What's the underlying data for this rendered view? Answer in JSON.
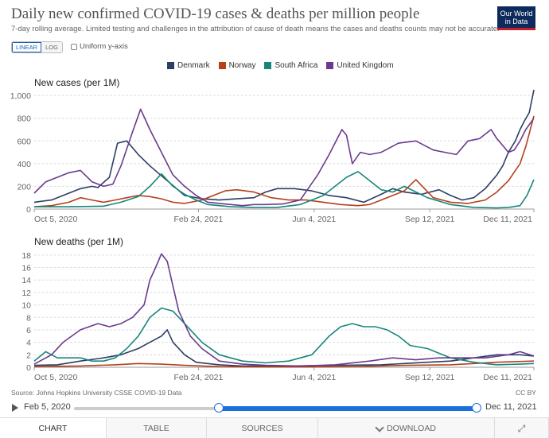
{
  "header": {
    "title": "Daily new confirmed COVID-19 cases & deaths per million people",
    "subtitle": "7-day rolling average. Limited testing and challenges in the attribution of cause of death means the cases and deaths counts may not be accurate.",
    "logo_line1": "Our World",
    "logo_line2": "in Data"
  },
  "controls": {
    "linear_label": "LINEAR",
    "log_label": "LOG",
    "uniform_label": "Uniform y-axis"
  },
  "legend": [
    {
      "name": "Denmark",
      "color": "#2d3e63"
    },
    {
      "name": "Norway",
      "color": "#b5401a"
    },
    {
      "name": "South Africa",
      "color": "#17877b"
    },
    {
      "name": "United Kingdom",
      "color": "#6b3a8d"
    }
  ],
  "chart_data": [
    {
      "type": "line",
      "title": "New cases (per 1M)",
      "x_ticks": [
        "Oct 5, 2020",
        "Feb 24, 2021",
        "Jun 4, 2021",
        "Sep 12, 2021",
        "Dec 11, 2021"
      ],
      "ylim": [
        0,
        1050
      ],
      "y_ticks": [
        0,
        200,
        400,
        600,
        800,
        1000
      ],
      "y_tick_labels": [
        "0",
        "200",
        "400",
        "600",
        "800",
        "1,000"
      ],
      "x_range_days": [
        0,
        432
      ],
      "series": [
        {
          "name": "Denmark",
          "color": "#2d3e63",
          "x": [
            0,
            15,
            25,
            40,
            50,
            55,
            65,
            72,
            80,
            90,
            100,
            115,
            130,
            145,
            160,
            175,
            190,
            200,
            210,
            225,
            240,
            255,
            270,
            285,
            300,
            310,
            320,
            335,
            350,
            360,
            370,
            380,
            390,
            400,
            405,
            410,
            416,
            420,
            424,
            428,
            432
          ],
          "values": [
            60,
            80,
            120,
            180,
            200,
            190,
            280,
            580,
            600,
            480,
            380,
            250,
            120,
            90,
            80,
            90,
            100,
            150,
            180,
            180,
            160,
            120,
            100,
            60,
            130,
            180,
            150,
            130,
            170,
            120,
            80,
            100,
            180,
            300,
            380,
            500,
            600,
            700,
            780,
            850,
            1050
          ]
        },
        {
          "name": "Norway",
          "color": "#b5401a",
          "x": [
            0,
            15,
            30,
            40,
            50,
            60,
            70,
            80,
            90,
            100,
            110,
            120,
            130,
            145,
            155,
            165,
            175,
            190,
            205,
            220,
            235,
            250,
            265,
            280,
            290,
            300,
            310,
            320,
            330,
            345,
            360,
            375,
            390,
            400,
            410,
            420,
            425,
            432
          ],
          "values": [
            20,
            30,
            60,
            100,
            80,
            60,
            80,
            100,
            120,
            110,
            90,
            60,
            50,
            80,
            120,
            160,
            170,
            150,
            100,
            80,
            80,
            60,
            40,
            30,
            40,
            80,
            120,
            160,
            260,
            100,
            60,
            50,
            80,
            150,
            250,
            400,
            550,
            820
          ]
        },
        {
          "name": "South Africa",
          "color": "#17877b",
          "x": [
            0,
            30,
            60,
            75,
            90,
            100,
            110,
            120,
            130,
            140,
            150,
            170,
            190,
            210,
            230,
            250,
            270,
            280,
            290,
            300,
            310,
            320,
            340,
            360,
            380,
            400,
            410,
            420,
            426,
            432
          ],
          "values": [
            20,
            20,
            25,
            60,
            110,
            200,
            310,
            200,
            130,
            80,
            40,
            20,
            15,
            15,
            40,
            120,
            280,
            330,
            250,
            170,
            150,
            200,
            100,
            40,
            15,
            10,
            15,
            30,
            120,
            260
          ]
        },
        {
          "name": "United Kingdom",
          "color": "#6b3a8d",
          "x": [
            0,
            10,
            20,
            30,
            40,
            50,
            60,
            68,
            75,
            85,
            92,
            100,
            110,
            120,
            130,
            140,
            150,
            160,
            170,
            180,
            190,
            200,
            215,
            230,
            245,
            255,
            262,
            266,
            270,
            275,
            282,
            290,
            300,
            315,
            330,
            345,
            355,
            365,
            375,
            385,
            395,
            400,
            405,
            410,
            415,
            420,
            425,
            432
          ],
          "values": [
            140,
            240,
            280,
            320,
            340,
            240,
            200,
            220,
            380,
            680,
            880,
            700,
            500,
            300,
            200,
            120,
            60,
            50,
            40,
            30,
            40,
            40,
            45,
            80,
            300,
            480,
            620,
            700,
            650,
            400,
            500,
            480,
            500,
            580,
            600,
            520,
            500,
            480,
            600,
            620,
            700,
            620,
            560,
            500,
            520,
            600,
            700,
            800
          ]
        }
      ]
    },
    {
      "type": "line",
      "title": "New deaths (per 1M)",
      "x_ticks": [
        "Oct 5, 2020",
        "Feb 24, 2021",
        "Jun 4, 2021",
        "Sep 12, 2021",
        "Dec 11, 2021"
      ],
      "ylim": [
        0,
        19
      ],
      "y_ticks": [
        0,
        2,
        4,
        6,
        8,
        10,
        12,
        14,
        16,
        18
      ],
      "y_tick_labels": [
        "0",
        "2",
        "4",
        "6",
        "8",
        "10",
        "12",
        "14",
        "16",
        "18"
      ],
      "x_range_days": [
        0,
        432
      ],
      "series": [
        {
          "name": "Denmark",
          "color": "#2d3e63",
          "x": [
            0,
            20,
            40,
            60,
            75,
            90,
            100,
            110,
            115,
            120,
            130,
            140,
            160,
            180,
            220,
            260,
            300,
            340,
            360,
            380,
            400,
            420,
            432
          ],
          "values": [
            0.3,
            0.4,
            1,
            1.5,
            2,
            3,
            4,
            5,
            6,
            4,
            2,
            0.8,
            0.4,
            0.2,
            0.2,
            0.3,
            0.4,
            0.8,
            1,
            1.5,
            2,
            2,
            1.8
          ]
        },
        {
          "name": "Norway",
          "color": "#b5401a",
          "x": [
            0,
            40,
            70,
            90,
            110,
            130,
            160,
            200,
            240,
            280,
            320,
            360,
            400,
            432
          ],
          "values": [
            0.1,
            0.2,
            0.4,
            0.6,
            0.5,
            0.3,
            0.1,
            0.05,
            0.05,
            0.1,
            0.3,
            0.4,
            0.8,
            1
          ]
        },
        {
          "name": "South Africa",
          "color": "#17877b",
          "x": [
            0,
            10,
            20,
            30,
            40,
            50,
            60,
            70,
            80,
            90,
            100,
            110,
            120,
            130,
            145,
            160,
            180,
            200,
            220,
            240,
            255,
            265,
            275,
            285,
            295,
            305,
            315,
            325,
            340,
            360,
            380,
            400,
            420,
            432
          ],
          "values": [
            1,
            2.5,
            1.5,
            1.5,
            1.5,
            1,
            1,
            1.5,
            3,
            5,
            8,
            9.5,
            9,
            7,
            4,
            2,
            1,
            0.7,
            1,
            2,
            5,
            6.5,
            7,
            6.5,
            6.5,
            6,
            5,
            3.5,
            3,
            1.5,
            0.8,
            0.4,
            0.5,
            0.6
          ]
        },
        {
          "name": "United Kingdom",
          "color": "#6b3a8d",
          "x": [
            0,
            15,
            25,
            40,
            55,
            65,
            75,
            85,
            95,
            100,
            105,
            110,
            115,
            120,
            125,
            135,
            145,
            160,
            180,
            200,
            230,
            260,
            290,
            310,
            330,
            350,
            370,
            390,
            410,
            420,
            432
          ],
          "values": [
            0.5,
            2,
            4,
            6,
            7,
            6.5,
            7,
            8,
            10,
            14,
            16,
            18.2,
            17,
            13,
            9,
            5,
            3,
            1,
            0.5,
            0.3,
            0.2,
            0.4,
            1,
            1.5,
            1.2,
            1.5,
            1.5,
            1.5,
            2,
            2.5,
            1.8
          ]
        }
      ]
    }
  ],
  "footer": {
    "source": "Source: Johns Hopkins University CSSE COVID-19 Data",
    "license": "CC BY",
    "timeline_start": "Feb 5, 2020",
    "timeline_end": "Dec 11, 2021"
  },
  "tabs": [
    {
      "label": "CHART"
    },
    {
      "label": "TABLE"
    },
    {
      "label": "SOURCES"
    },
    {
      "label": "DOWNLOAD"
    }
  ]
}
